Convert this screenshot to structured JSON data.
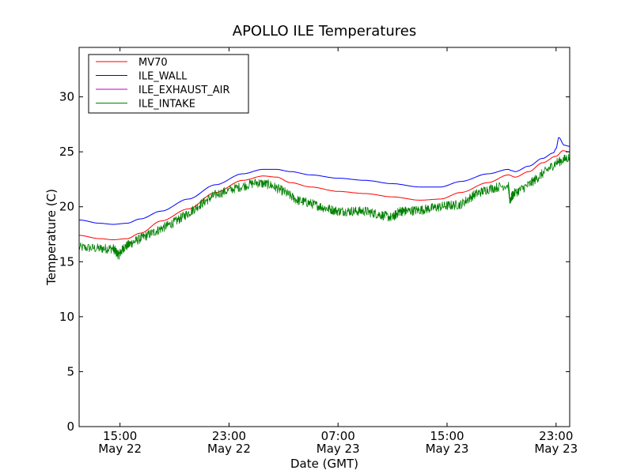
{
  "chart_data": {
    "type": "line",
    "title": "APOLLO ILE Temperatures",
    "xlabel": "Date (GMT)",
    "ylabel": "Temperature (C)",
    "x_unit": "hours",
    "xlim": [
      12.0,
      48.0
    ],
    "ylim": [
      0,
      34.5
    ],
    "grid": false,
    "legend_position": "top-left",
    "x_ticks": [
      {
        "x": 15,
        "time": "15:00",
        "date": "May 22"
      },
      {
        "x": 23,
        "time": "23:00",
        "date": "May 22"
      },
      {
        "x": 31,
        "time": "07:00",
        "date": "May 23"
      },
      {
        "x": 39,
        "time": "15:00",
        "date": "May 23"
      },
      {
        "x": 47,
        "time": "23:00",
        "date": "May 23"
      }
    ],
    "y_ticks": [
      0,
      5,
      10,
      15,
      20,
      25,
      30
    ],
    "series": [
      {
        "name": "MV70",
        "color": "#ff0000",
        "noise": 0,
        "x": [
          12.0,
          13.5,
          14.5,
          15.5,
          16.5,
          18.0,
          20.0,
          22.0,
          24.0,
          25.5,
          26.5,
          27.5,
          29.0,
          31.0,
          33.0,
          35.0,
          37.0,
          38.5,
          40.0,
          42.0,
          43.5,
          44.0,
          45.0,
          46.0,
          47.0,
          47.5,
          48.0
        ],
        "y": [
          17.4,
          17.1,
          17.0,
          17.1,
          17.6,
          18.7,
          19.8,
          21.3,
          22.4,
          22.8,
          22.7,
          22.2,
          21.8,
          21.4,
          21.2,
          20.9,
          20.6,
          20.7,
          21.3,
          22.2,
          22.9,
          22.7,
          23.2,
          24.0,
          24.6,
          25.1,
          25.0
        ]
      },
      {
        "name": "ILE_WALL",
        "color": "#0000ff",
        "noise": 0,
        "x": [
          12.0,
          13.5,
          14.5,
          15.5,
          16.5,
          18.0,
          20.0,
          22.0,
          24.0,
          25.5,
          26.5,
          27.5,
          29.0,
          31.0,
          33.0,
          35.0,
          37.0,
          38.5,
          40.0,
          42.0,
          43.5,
          43.7,
          44.0,
          45.0,
          46.0,
          46.8,
          47.0,
          47.2,
          47.6,
          48.0
        ],
        "y": [
          18.8,
          18.5,
          18.4,
          18.5,
          18.9,
          19.6,
          20.7,
          22.0,
          23.0,
          23.4,
          23.4,
          23.2,
          22.9,
          22.6,
          22.4,
          22.1,
          21.8,
          21.8,
          22.3,
          23.0,
          23.4,
          23.3,
          23.2,
          23.7,
          24.4,
          24.9,
          25.3,
          26.3,
          25.6,
          25.5
        ]
      },
      {
        "name": "ILE_EXHAUST_AIR",
        "color": "#bf00bf",
        "noise": 0,
        "x": [],
        "y": []
      },
      {
        "name": "ILE_INTAKE",
        "color": "#008000",
        "noise": 0.55,
        "x": [
          12.0,
          13.5,
          14.5,
          14.9,
          15.3,
          16.0,
          17.0,
          18.0,
          19.0,
          20.0,
          21.0,
          22.0,
          23.5,
          25.0,
          26.0,
          27.0,
          28.0,
          29.0,
          30.0,
          31.0,
          32.0,
          33.0,
          34.0,
          35.0,
          35.5,
          36.0,
          37.0,
          38.0,
          39.0,
          40.0,
          41.0,
          42.0,
          43.5,
          43.6,
          43.9,
          45.0,
          46.0,
          47.0,
          48.0
        ],
        "y": [
          16.3,
          16.2,
          16.2,
          15.6,
          16.3,
          16.8,
          17.4,
          18.0,
          18.6,
          19.4,
          20.3,
          21.1,
          21.7,
          22.2,
          22.0,
          21.4,
          20.6,
          20.3,
          19.9,
          19.6,
          19.6,
          19.6,
          19.3,
          19.0,
          19.6,
          19.6,
          19.7,
          19.9,
          20.1,
          20.2,
          21.1,
          21.6,
          22.0,
          20.6,
          21.2,
          22.0,
          23.0,
          24.0,
          24.5
        ]
      }
    ]
  }
}
